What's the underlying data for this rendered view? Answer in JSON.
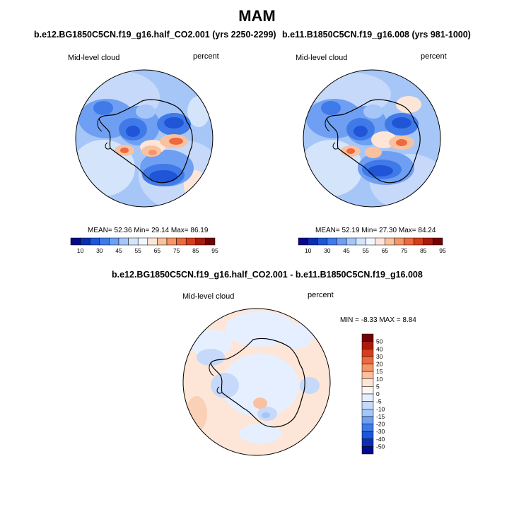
{
  "page_title": "MAM",
  "panels": [
    {
      "case_title": "b.e12.BG1850C5CN.f19_g16.half_CO2.001 (yrs 2250-2299)",
      "variable": "Mid-level cloud",
      "units": "percent",
      "stats": {
        "mean_label": "MEAN=",
        "mean": "52.36",
        "min_label": "Min=",
        "min": "29.14",
        "max_label": "Max=",
        "max": "86.19"
      }
    },
    {
      "case_title": "b.e11.B1850C5CN.f19_g16.008 (yrs 981-1000)",
      "variable": "Mid-level cloud",
      "units": "percent",
      "stats": {
        "mean_label": "MEAN=",
        "mean": "52.19",
        "min_label": "Min=",
        "min": "27.30",
        "max_label": "Max=",
        "max": "84.24"
      }
    },
    {
      "case_title": "b.e12.BG1850C5CN.f19_g16.half_CO2.001 - b.e11.B1850C5CN.f19_g16.008",
      "variable": "Mid-level cloud",
      "units": "percent",
      "stats": {
        "min_label": "MIN =",
        "min": "-8.33",
        "max_label": "MAX =",
        "max": "8.84"
      }
    }
  ],
  "abs_colorbar": {
    "ticks": [
      "10",
      "30",
      "45",
      "55",
      "65",
      "75",
      "85",
      "95"
    ],
    "colors": [
      "#08088a",
      "#0a2fb5",
      "#1f55d6",
      "#3f7ae8",
      "#6f9ff2",
      "#a6c6f8",
      "#d4e4fb",
      "#f2f6fd",
      "#fde6d7",
      "#f9c1a0",
      "#f69568",
      "#ec6a3d",
      "#d43d1e",
      "#a91b0c",
      "#700404"
    ]
  },
  "diff_colorbar": {
    "ticks": [
      "50",
      "40",
      "30",
      "20",
      "15",
      "10",
      "5",
      "0",
      "-5",
      "-10",
      "-15",
      "-20",
      "-30",
      "-40",
      "-50"
    ],
    "colors": [
      "#700404",
      "#a91b0c",
      "#d43d1e",
      "#ec6a3d",
      "#f69568",
      "#f9c1a0",
      "#fde6d7",
      "#fdf6ef",
      "#e6efff",
      "#c6d9fa",
      "#a6c6f8",
      "#6f9ff2",
      "#3f7ae8",
      "#1f55d6",
      "#0a2fb5",
      "#08088a"
    ]
  }
}
